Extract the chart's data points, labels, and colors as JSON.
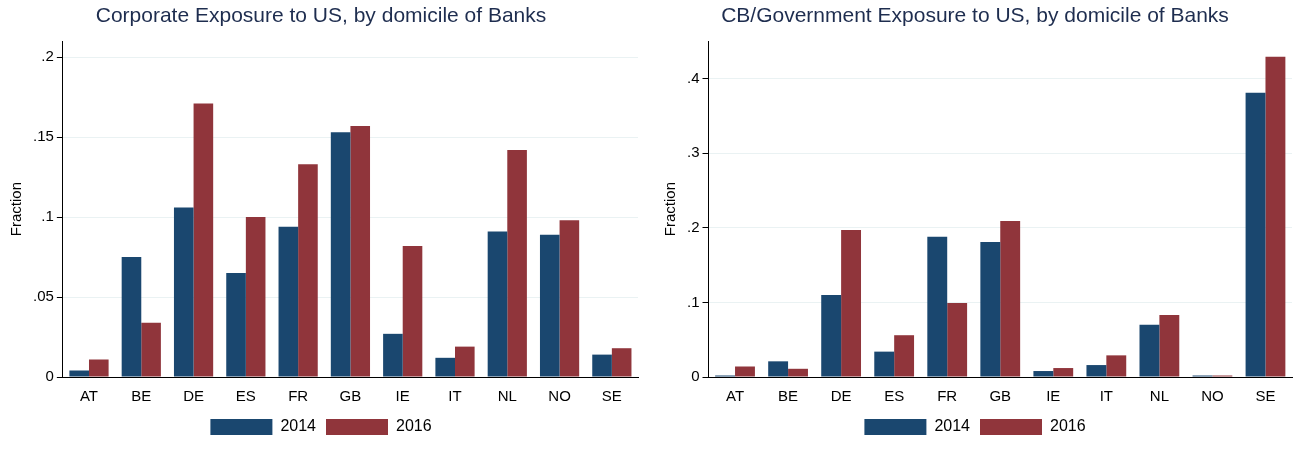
{
  "chart_data": [
    {
      "type": "bar",
      "title": "Corporate Exposure to US, by domicile of Banks",
      "ylabel": "Fraction",
      "categories": [
        "AT",
        "BE",
        "DE",
        "ES",
        "FR",
        "GB",
        "IE",
        "IT",
        "NL",
        "NO",
        "SE"
      ],
      "series": [
        {
          "name": "2014",
          "color": "#1a476f",
          "values": [
            0.004,
            0.075,
            0.106,
            0.065,
            0.094,
            0.153,
            0.027,
            0.012,
            0.091,
            0.089,
            0.014
          ]
        },
        {
          "name": "2016",
          "color": "#90353b",
          "values": [
            0.011,
            0.034,
            0.171,
            0.1,
            0.133,
            0.157,
            0.082,
            0.019,
            0.142,
            0.098,
            0.018
          ]
        }
      ],
      "ylim": [
        0,
        0.21
      ],
      "yticks": [
        0,
        {
          "value": 0.05,
          "label": ".05"
        },
        {
          "value": 0.1,
          "label": ".1"
        },
        {
          "value": 0.15,
          "label": ".15"
        },
        {
          "value": 0.2,
          "label": ".2"
        }
      ],
      "grid": "y",
      "legend": "bottom"
    },
    {
      "type": "bar",
      "title": "CB/Government Exposure to US, by domicile of Banks",
      "ylabel": "Fraction",
      "categories": [
        "AT",
        "BE",
        "DE",
        "ES",
        "FR",
        "GB",
        "IE",
        "IT",
        "NL",
        "NO",
        "SE"
      ],
      "series": [
        {
          "name": "2014",
          "color": "#1a476f",
          "values": [
            0.002,
            0.021,
            0.11,
            0.034,
            0.188,
            0.181,
            0.008,
            0.016,
            0.07,
            0.002,
            0.381
          ]
        },
        {
          "name": "2016",
          "color": "#90353b",
          "values": [
            0.014,
            0.011,
            0.197,
            0.056,
            0.099,
            0.209,
            0.012,
            0.029,
            0.083,
            0.002,
            0.429
          ]
        }
      ],
      "ylim": [
        0,
        0.45
      ],
      "yticks": [
        0,
        {
          "value": 0.1,
          "label": ".1"
        },
        {
          "value": 0.2,
          "label": ".2"
        },
        {
          "value": 0.3,
          "label": ".3"
        },
        {
          "value": 0.4,
          "label": ".4"
        }
      ],
      "grid": "y",
      "legend": "bottom"
    }
  ]
}
